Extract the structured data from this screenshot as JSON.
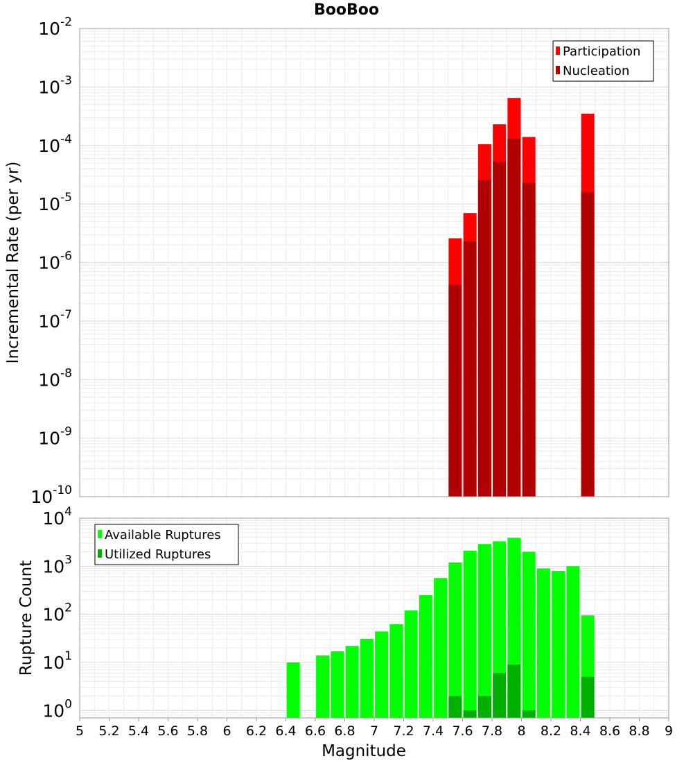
{
  "chart_data": [
    {
      "type": "bar",
      "title": "BooBoo",
      "xlabel": "",
      "ylabel": "Incremental Rate (per yr)",
      "y_scale": "log",
      "ylim": [
        1e-10,
        0.01
      ],
      "xlim": [
        5,
        9
      ],
      "y_ticks": [
        {
          "base": "10",
          "exp": "-10"
        },
        {
          "base": "10",
          "exp": "-9"
        },
        {
          "base": "10",
          "exp": "-8"
        },
        {
          "base": "10",
          "exp": "-7"
        },
        {
          "base": "10",
          "exp": "-6"
        },
        {
          "base": "10",
          "exp": "-5"
        },
        {
          "base": "10",
          "exp": "-4"
        },
        {
          "base": "10",
          "exp": "-3"
        },
        {
          "base": "10",
          "exp": "-2"
        }
      ],
      "legend_position": "top-right",
      "series": [
        {
          "name": "Participation",
          "color": "#ff0000",
          "points": [
            {
              "x": 7.55,
              "y": 2.6e-06
            },
            {
              "x": 7.65,
              "y": 7e-06
            },
            {
              "x": 7.75,
              "y": 0.000105
            },
            {
              "x": 7.85,
              "y": 0.00023
            },
            {
              "x": 7.95,
              "y": 0.00065
            },
            {
              "x": 8.05,
              "y": 0.00014
            },
            {
              "x": 8.45,
              "y": 0.00035
            }
          ]
        },
        {
          "name": "Nucleation",
          "color": "#b00000",
          "points": [
            {
              "x": 7.55,
              "y": 4.2e-07
            },
            {
              "x": 7.65,
              "y": 2.3e-06
            },
            {
              "x": 7.75,
              "y": 2.6e-05
            },
            {
              "x": 7.85,
              "y": 5.3e-05
            },
            {
              "x": 7.95,
              "y": 0.00013
            },
            {
              "x": 8.05,
              "y": 2.3e-05
            },
            {
              "x": 8.45,
              "y": 1.6e-05
            }
          ]
        }
      ]
    },
    {
      "type": "bar",
      "xlabel": "Magnitude",
      "ylabel": "Rupture Count",
      "y_scale": "log",
      "ylim": [
        0.7,
        10000
      ],
      "xlim": [
        5,
        9
      ],
      "x_ticks": [
        "5",
        "5.2",
        "5.4",
        "5.6",
        "5.8",
        "6",
        "6.2",
        "6.4",
        "6.6",
        "6.8",
        "7",
        "7.2",
        "7.4",
        "7.6",
        "7.8",
        "8",
        "8.2",
        "8.4",
        "8.6",
        "8.8",
        "9"
      ],
      "y_ticks": [
        {
          "base": "10",
          "exp": "0"
        },
        {
          "base": "10",
          "exp": "1"
        },
        {
          "base": "10",
          "exp": "2"
        },
        {
          "base": "10",
          "exp": "3"
        },
        {
          "base": "10",
          "exp": "4"
        }
      ],
      "legend_position": "top-left",
      "series": [
        {
          "name": "Available Ruptures",
          "color": "#00ff00",
          "points": [
            {
              "x": 6.45,
              "y": 10
            },
            {
              "x": 6.65,
              "y": 14
            },
            {
              "x": 6.75,
              "y": 17
            },
            {
              "x": 6.85,
              "y": 22
            },
            {
              "x": 6.95,
              "y": 31
            },
            {
              "x": 7.05,
              "y": 44
            },
            {
              "x": 7.15,
              "y": 62
            },
            {
              "x": 7.25,
              "y": 120
            },
            {
              "x": 7.35,
              "y": 250
            },
            {
              "x": 7.45,
              "y": 570
            },
            {
              "x": 7.55,
              "y": 1200
            },
            {
              "x": 7.65,
              "y": 2100
            },
            {
              "x": 7.75,
              "y": 2900
            },
            {
              "x": 7.85,
              "y": 3300
            },
            {
              "x": 7.95,
              "y": 3900
            },
            {
              "x": 8.05,
              "y": 2000
            },
            {
              "x": 8.15,
              "y": 900
            },
            {
              "x": 8.25,
              "y": 800
            },
            {
              "x": 8.35,
              "y": 1000
            },
            {
              "x": 8.45,
              "y": 95
            }
          ]
        },
        {
          "name": "Utilized Ruptures",
          "color": "#00b000",
          "points": [
            {
              "x": 7.55,
              "y": 2
            },
            {
              "x": 7.65,
              "y": 1
            },
            {
              "x": 7.75,
              "y": 2
            },
            {
              "x": 7.85,
              "y": 6
            },
            {
              "x": 7.95,
              "y": 9
            },
            {
              "x": 8.05,
              "y": 1
            },
            {
              "x": 8.45,
              "y": 5
            }
          ]
        }
      ]
    }
  ]
}
